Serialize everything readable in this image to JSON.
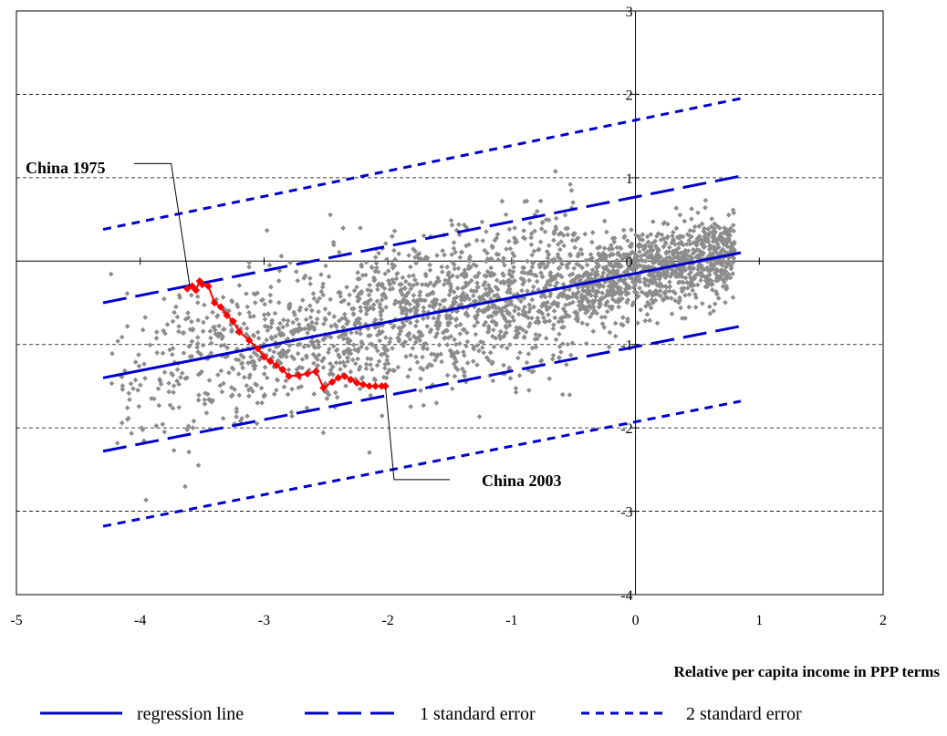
{
  "chart_data": {
    "type": "scatter",
    "title": "",
    "xlabel": "Relative per capita income in PPP terms",
    "ylabel": "",
    "xlim": [
      -5,
      2
    ],
    "ylim": [
      -4,
      3
    ],
    "xticks": [
      -5,
      -4,
      -3,
      -2,
      -1,
      0,
      1,
      2
    ],
    "yticks": [
      -4,
      -3,
      -2,
      -1,
      0,
      1,
      2,
      3
    ],
    "grid": "horizontal dashed",
    "legend_position": "bottom",
    "colors": {
      "scatter": "#8c8c8c",
      "china": "#ff0000",
      "lines": "#0000cc"
    },
    "series": [
      {
        "name": "regression line",
        "style": "solid",
        "x": [
          -4.3,
          0.85
        ],
        "y": [
          -1.4,
          0.1
        ]
      },
      {
        "name": "1 standard error",
        "style": "long-dash",
        "lines": [
          {
            "x": [
              -4.3,
              0.85
            ],
            "y": [
              -0.5,
              1.02
            ]
          },
          {
            "x": [
              -4.3,
              0.85
            ],
            "y": [
              -2.28,
              -0.78
            ]
          }
        ]
      },
      {
        "name": "2 standard error",
        "style": "short-dash",
        "lines": [
          {
            "x": [
              -4.3,
              0.85
            ],
            "y": [
              0.38,
              1.95
            ]
          },
          {
            "x": [
              -4.3,
              0.85
            ],
            "y": [
              -3.18,
              -1.68
            ]
          }
        ]
      },
      {
        "style": "red line with markers",
        "x": [
          -3.62,
          -3.58,
          -3.55,
          -3.52,
          -3.5,
          -3.45,
          -3.4,
          -3.35,
          -3.3,
          -3.25,
          -3.2,
          -3.12,
          -3.05,
          -3.0,
          -2.95,
          -2.9,
          -2.85,
          -2.8,
          -2.72,
          -2.65,
          -2.58,
          -2.52,
          -2.45,
          -2.4,
          -2.35,
          -2.3,
          -2.25,
          -2.2,
          -2.15,
          -2.1,
          -2.05,
          -2.02
        ],
        "y": [
          -0.33,
          -0.3,
          -0.35,
          -0.24,
          -0.28,
          -0.3,
          -0.5,
          -0.55,
          -0.65,
          -0.72,
          -0.85,
          -0.95,
          -1.05,
          -1.15,
          -1.2,
          -1.25,
          -1.3,
          -1.38,
          -1.37,
          -1.35,
          -1.32,
          -1.52,
          -1.45,
          -1.4,
          -1.38,
          -1.42,
          -1.46,
          -1.48,
          -1.5,
          -1.5,
          -1.5,
          -1.5
        ]
      }
    ],
    "scatter_cloud": {
      "description_of_distribution": "dense cloud of grey points around regression line, x from about -4.3 to 0.8",
      "x_range": [
        -4.3,
        0.8
      ],
      "center_line": {
        "x": [
          -4.3,
          0.85
        ],
        "y": [
          -1.4,
          0.1
        ]
      },
      "spread_sd": 0.45
    },
    "annotations": [
      {
        "text": "China 1975",
        "point": {
          "x": -3.6,
          "y": -0.3
        }
      },
      {
        "text": "China 2003",
        "point": {
          "x": -2.02,
          "y": -1.5
        }
      }
    ]
  },
  "legend": {
    "regression": "regression line",
    "se1": "1 standard error",
    "se2": "2 standard error"
  }
}
